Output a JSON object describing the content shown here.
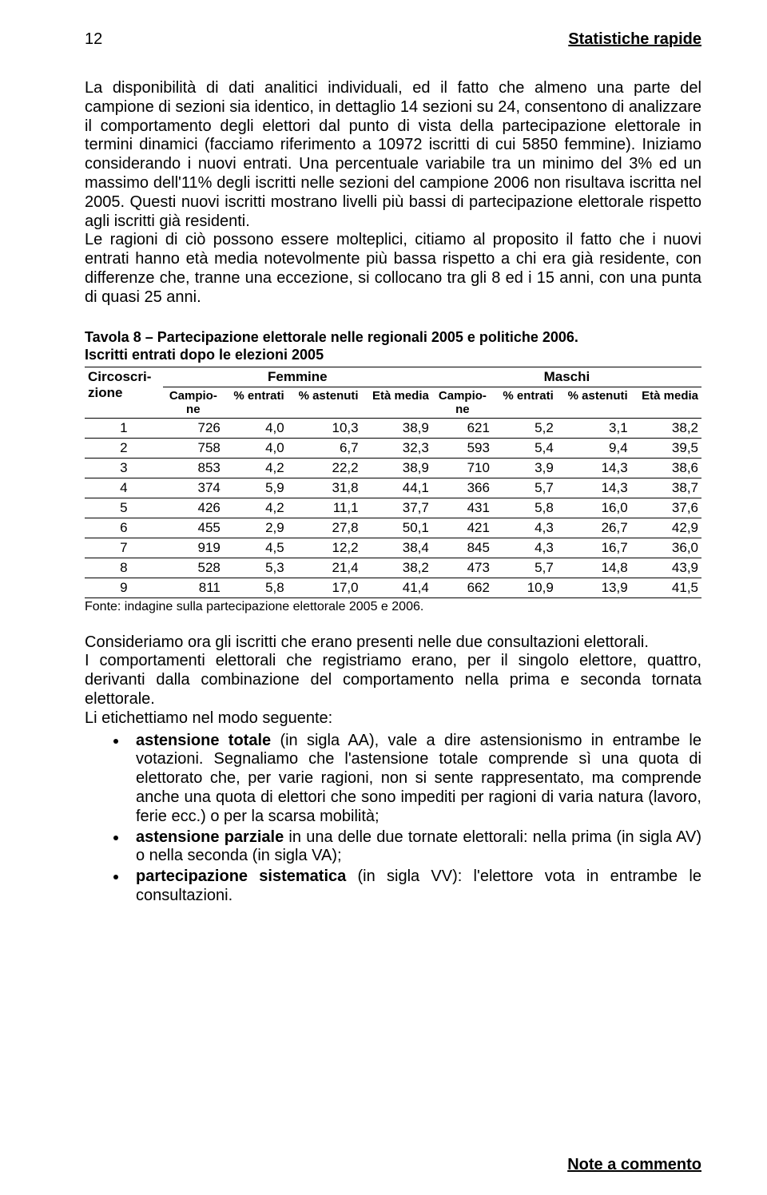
{
  "header": {
    "page_num": "12",
    "title": "Statistiche rapide"
  },
  "para1": "La disponibilità di dati analitici individuali, ed il fatto che almeno una parte del campione di sezioni sia identico, in dettaglio 14 sezioni su 24, consentono di analizzare il comportamento degli elettori dal punto di vista della partecipazione elettorale in termini dinamici (facciamo riferimento a 10972 iscritti di cui 5850 femmine). Iniziamo considerando i nuovi entrati. Una percentuale variabile tra un minimo del 3% ed un massimo dell'11% degli iscritti nelle sezioni del campione 2006 non risultava iscritta nel 2005. Questi nuovi iscritti mostrano livelli più bassi di partecipazione elettorale rispetto agli iscritti già residenti.",
  "para2": "Le ragioni di ciò possono essere molteplici, citiamo al proposito il fatto che i nuovi entrati hanno età media notevolmente più bassa rispetto a chi era già residente, con differenze che, tranne una eccezione, si collocano tra gli 8 ed i 15 anni, con una punta di quasi 25 anni.",
  "table": {
    "title_l1": "Tavola 8 – Partecipazione elettorale nelle regionali 2005 e politiche 2006.",
    "title_l2": "Iscritti entrati dopo le elezioni 2005",
    "h_circ": "Circoscri-\nzione",
    "h_fem": "Femmine",
    "h_mas": "Maschi",
    "sub": [
      "Campio-\nne",
      "% entrati",
      "% astenuti",
      "Età media",
      "Campio-\nne",
      "% entrati",
      "% astenuti",
      "Età media"
    ],
    "rows": [
      [
        "1",
        "726",
        "4,0",
        "10,3",
        "38,9",
        "621",
        "5,2",
        "3,1",
        "38,2"
      ],
      [
        "2",
        "758",
        "4,0",
        "6,7",
        "32,3",
        "593",
        "5,4",
        "9,4",
        "39,5"
      ],
      [
        "3",
        "853",
        "4,2",
        "22,2",
        "38,9",
        "710",
        "3,9",
        "14,3",
        "38,6"
      ],
      [
        "4",
        "374",
        "5,9",
        "31,8",
        "44,1",
        "366",
        "5,7",
        "14,3",
        "38,7"
      ],
      [
        "5",
        "426",
        "4,2",
        "11,1",
        "37,7",
        "431",
        "5,8",
        "16,0",
        "37,6"
      ],
      [
        "6",
        "455",
        "2,9",
        "27,8",
        "50,1",
        "421",
        "4,3",
        "26,7",
        "42,9"
      ],
      [
        "7",
        "919",
        "4,5",
        "12,2",
        "38,4",
        "845",
        "4,3",
        "16,7",
        "36,0"
      ],
      [
        "8",
        "528",
        "5,3",
        "21,4",
        "38,2",
        "473",
        "5,7",
        "14,8",
        "43,9"
      ],
      [
        "9",
        "811",
        "5,8",
        "17,0",
        "41,4",
        "662",
        "10,9",
        "13,9",
        "41,5"
      ]
    ],
    "source": "Fonte: indagine sulla partecipazione elettorale 2005 e 2006."
  },
  "para3": "Consideriamo ora gli iscritti che erano presenti nelle due consultazioni elettorali.",
  "para4": "I comportamenti elettorali che registriamo erano, per il singolo elettore, quattro, derivanti dalla combinazione del comportamento nella prima e seconda tornata elettorale.",
  "para5": "Li etichettiamo nel modo seguente:",
  "bullets": [
    {
      "b": "astensione totale",
      "t": " (in sigla AA), vale a dire astensionismo in entrambe le votazioni. Segnaliamo che l'astensione totale comprende sì una quota di elettorato che, per varie ragioni, non si sente rappresentato, ma comprende anche una quota di elettori che sono impediti per ragioni di varia natura (lavoro, ferie ecc.) o per la scarsa mobilità;"
    },
    {
      "b": "astensione parziale",
      "t": " in una delle due tornate elettorali: nella prima (in sigla AV) o nella seconda (in sigla VA);"
    },
    {
      "b": "partecipazione sistematica",
      "t": " (in sigla VV): l'elettore vota in entrambe le consultazioni."
    }
  ],
  "footer": "Note a commento"
}
